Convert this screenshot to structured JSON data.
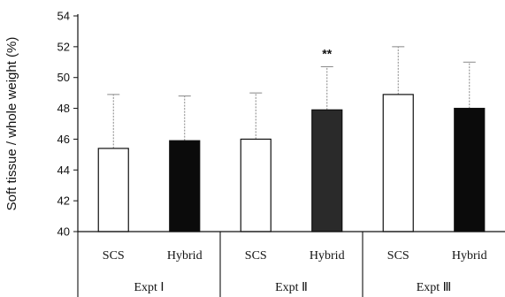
{
  "chart_data": {
    "type": "bar",
    "title": "",
    "ylabel": "Soft tissue / whole weight (%)",
    "xlabel": "",
    "ylim": [
      40,
      54
    ],
    "yticks": [
      40,
      42,
      44,
      46,
      48,
      50,
      52,
      54
    ],
    "grid": false,
    "groups": [
      {
        "label": "Expt Ⅰ",
        "bars": [
          {
            "category": "SCS",
            "value": 45.4,
            "error": 3.5,
            "fill": "#ffffff",
            "annotation": ""
          },
          {
            "category": "Hybrid",
            "value": 45.9,
            "error": 2.9,
            "fill": "#0b0b0b",
            "annotation": ""
          }
        ]
      },
      {
        "label": "Expt Ⅱ",
        "bars": [
          {
            "category": "SCS",
            "value": 46.0,
            "error": 3.0,
            "fill": "#ffffff",
            "annotation": ""
          },
          {
            "category": "Hybrid",
            "value": 47.9,
            "error": 2.8,
            "fill": "#2a2a2a",
            "annotation": "**"
          }
        ]
      },
      {
        "label": "Expt Ⅲ",
        "bars": [
          {
            "category": "SCS",
            "value": 48.9,
            "error": 3.1,
            "fill": "#ffffff",
            "annotation": ""
          },
          {
            "category": "Hybrid",
            "value": 48.0,
            "error": 3.0,
            "fill": "#0b0b0b",
            "annotation": ""
          }
        ]
      }
    ]
  }
}
